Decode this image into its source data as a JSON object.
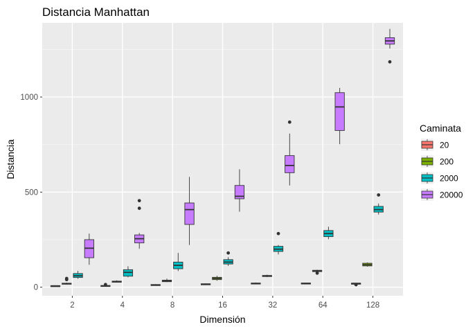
{
  "chart_data": {
    "type": "boxplot",
    "title": "Distancia Manhattan",
    "xlabel": "Dimensión",
    "ylabel": "Distancia",
    "categories": [
      "2",
      "4",
      "8",
      "16",
      "32",
      "64",
      "128"
    ],
    "ylim": [
      -45,
      1390
    ],
    "yticks": [
      0,
      500,
      1000
    ],
    "grid": true,
    "legend_position": "right",
    "legend_title": "Caminata",
    "series": [
      {
        "name": "20",
        "color": "#F8766D",
        "boxes": [
          {
            "min": 5,
            "q1": 6,
            "median": 7,
            "q3": 8,
            "max": 9,
            "outliers": []
          },
          {
            "min": 5,
            "q1": 6,
            "median": 7,
            "q3": 9,
            "max": 10,
            "outliers": [
              14
            ]
          },
          {
            "min": 9,
            "q1": 11,
            "median": 12,
            "q3": 14,
            "max": 16,
            "outliers": []
          },
          {
            "min": 12,
            "q1": 14,
            "median": 16,
            "q3": 18,
            "max": 20,
            "outliers": []
          },
          {
            "min": 15,
            "q1": 17,
            "median": 19,
            "q3": 22,
            "max": 25,
            "outliers": []
          },
          {
            "min": 16,
            "q1": 18,
            "median": 20,
            "q3": 22,
            "max": 24,
            "outliers": []
          },
          {
            "min": 16,
            "q1": 18,
            "median": 20,
            "q3": 21,
            "max": 23,
            "outliers": [
              13
            ]
          }
        ]
      },
      {
        "name": "200",
        "color": "#7CAE00",
        "boxes": [
          {
            "min": 14,
            "q1": 16,
            "median": 19,
            "q3": 21,
            "max": 24,
            "outliers": [
              40,
              46
            ]
          },
          {
            "min": 24,
            "q1": 26,
            "median": 29,
            "q3": 32,
            "max": 36,
            "outliers": []
          },
          {
            "min": 27,
            "q1": 29,
            "median": 33,
            "q3": 37,
            "max": 45,
            "outliers": []
          },
          {
            "min": 34,
            "q1": 40,
            "median": 46,
            "q3": 52,
            "max": 60,
            "outliers": []
          },
          {
            "min": 53,
            "q1": 56,
            "median": 59,
            "q3": 62,
            "max": 66,
            "outliers": []
          },
          {
            "min": 76,
            "q1": 82,
            "median": 86,
            "q3": 89,
            "max": 92,
            "outliers": [
              74
            ]
          },
          {
            "min": 108,
            "q1": 112,
            "median": 118,
            "q3": 126,
            "max": 130,
            "outliers": []
          }
        ]
      },
      {
        "name": "2000",
        "color": "#00BFC4",
        "boxes": [
          {
            "min": 44,
            "q1": 51,
            "median": 60,
            "q3": 72,
            "max": 86,
            "outliers": []
          },
          {
            "min": 52,
            "q1": 58,
            "median": 78,
            "q3": 92,
            "max": 110,
            "outliers": []
          },
          {
            "min": 85,
            "q1": 97,
            "median": 115,
            "q3": 132,
            "max": 180,
            "outliers": []
          },
          {
            "min": 112,
            "q1": 122,
            "median": 132,
            "q3": 145,
            "max": 158,
            "outliers": [
              180
            ]
          },
          {
            "min": 172,
            "q1": 188,
            "median": 200,
            "q3": 215,
            "max": 222,
            "outliers": [
              282
            ]
          },
          {
            "min": 252,
            "q1": 266,
            "median": 282,
            "q3": 298,
            "max": 318,
            "outliers": []
          },
          {
            "min": 382,
            "q1": 395,
            "median": 408,
            "q3": 425,
            "max": 440,
            "outliers": [
              485
            ]
          }
        ]
      },
      {
        "name": "20000",
        "color": "#C77CFF",
        "boxes": [
          {
            "min": 118,
            "q1": 155,
            "median": 205,
            "q3": 250,
            "max": 282,
            "outliers": []
          },
          {
            "min": 202,
            "q1": 233,
            "median": 255,
            "q3": 275,
            "max": 285,
            "outliers": [
              415,
              455
            ]
          },
          {
            "min": 222,
            "q1": 330,
            "median": 408,
            "q3": 443,
            "max": 580,
            "outliers": []
          },
          {
            "min": 397,
            "q1": 465,
            "median": 478,
            "q3": 535,
            "max": 620,
            "outliers": []
          },
          {
            "min": 535,
            "q1": 602,
            "median": 640,
            "q3": 692,
            "max": 808,
            "outliers": [
              868
            ]
          },
          {
            "min": 752,
            "q1": 824,
            "median": 948,
            "q3": 1023,
            "max": 1048,
            "outliers": []
          },
          {
            "min": 1255,
            "q1": 1278,
            "median": 1295,
            "q3": 1312,
            "max": 1358,
            "outliers": [
              1185
            ]
          }
        ]
      }
    ]
  }
}
